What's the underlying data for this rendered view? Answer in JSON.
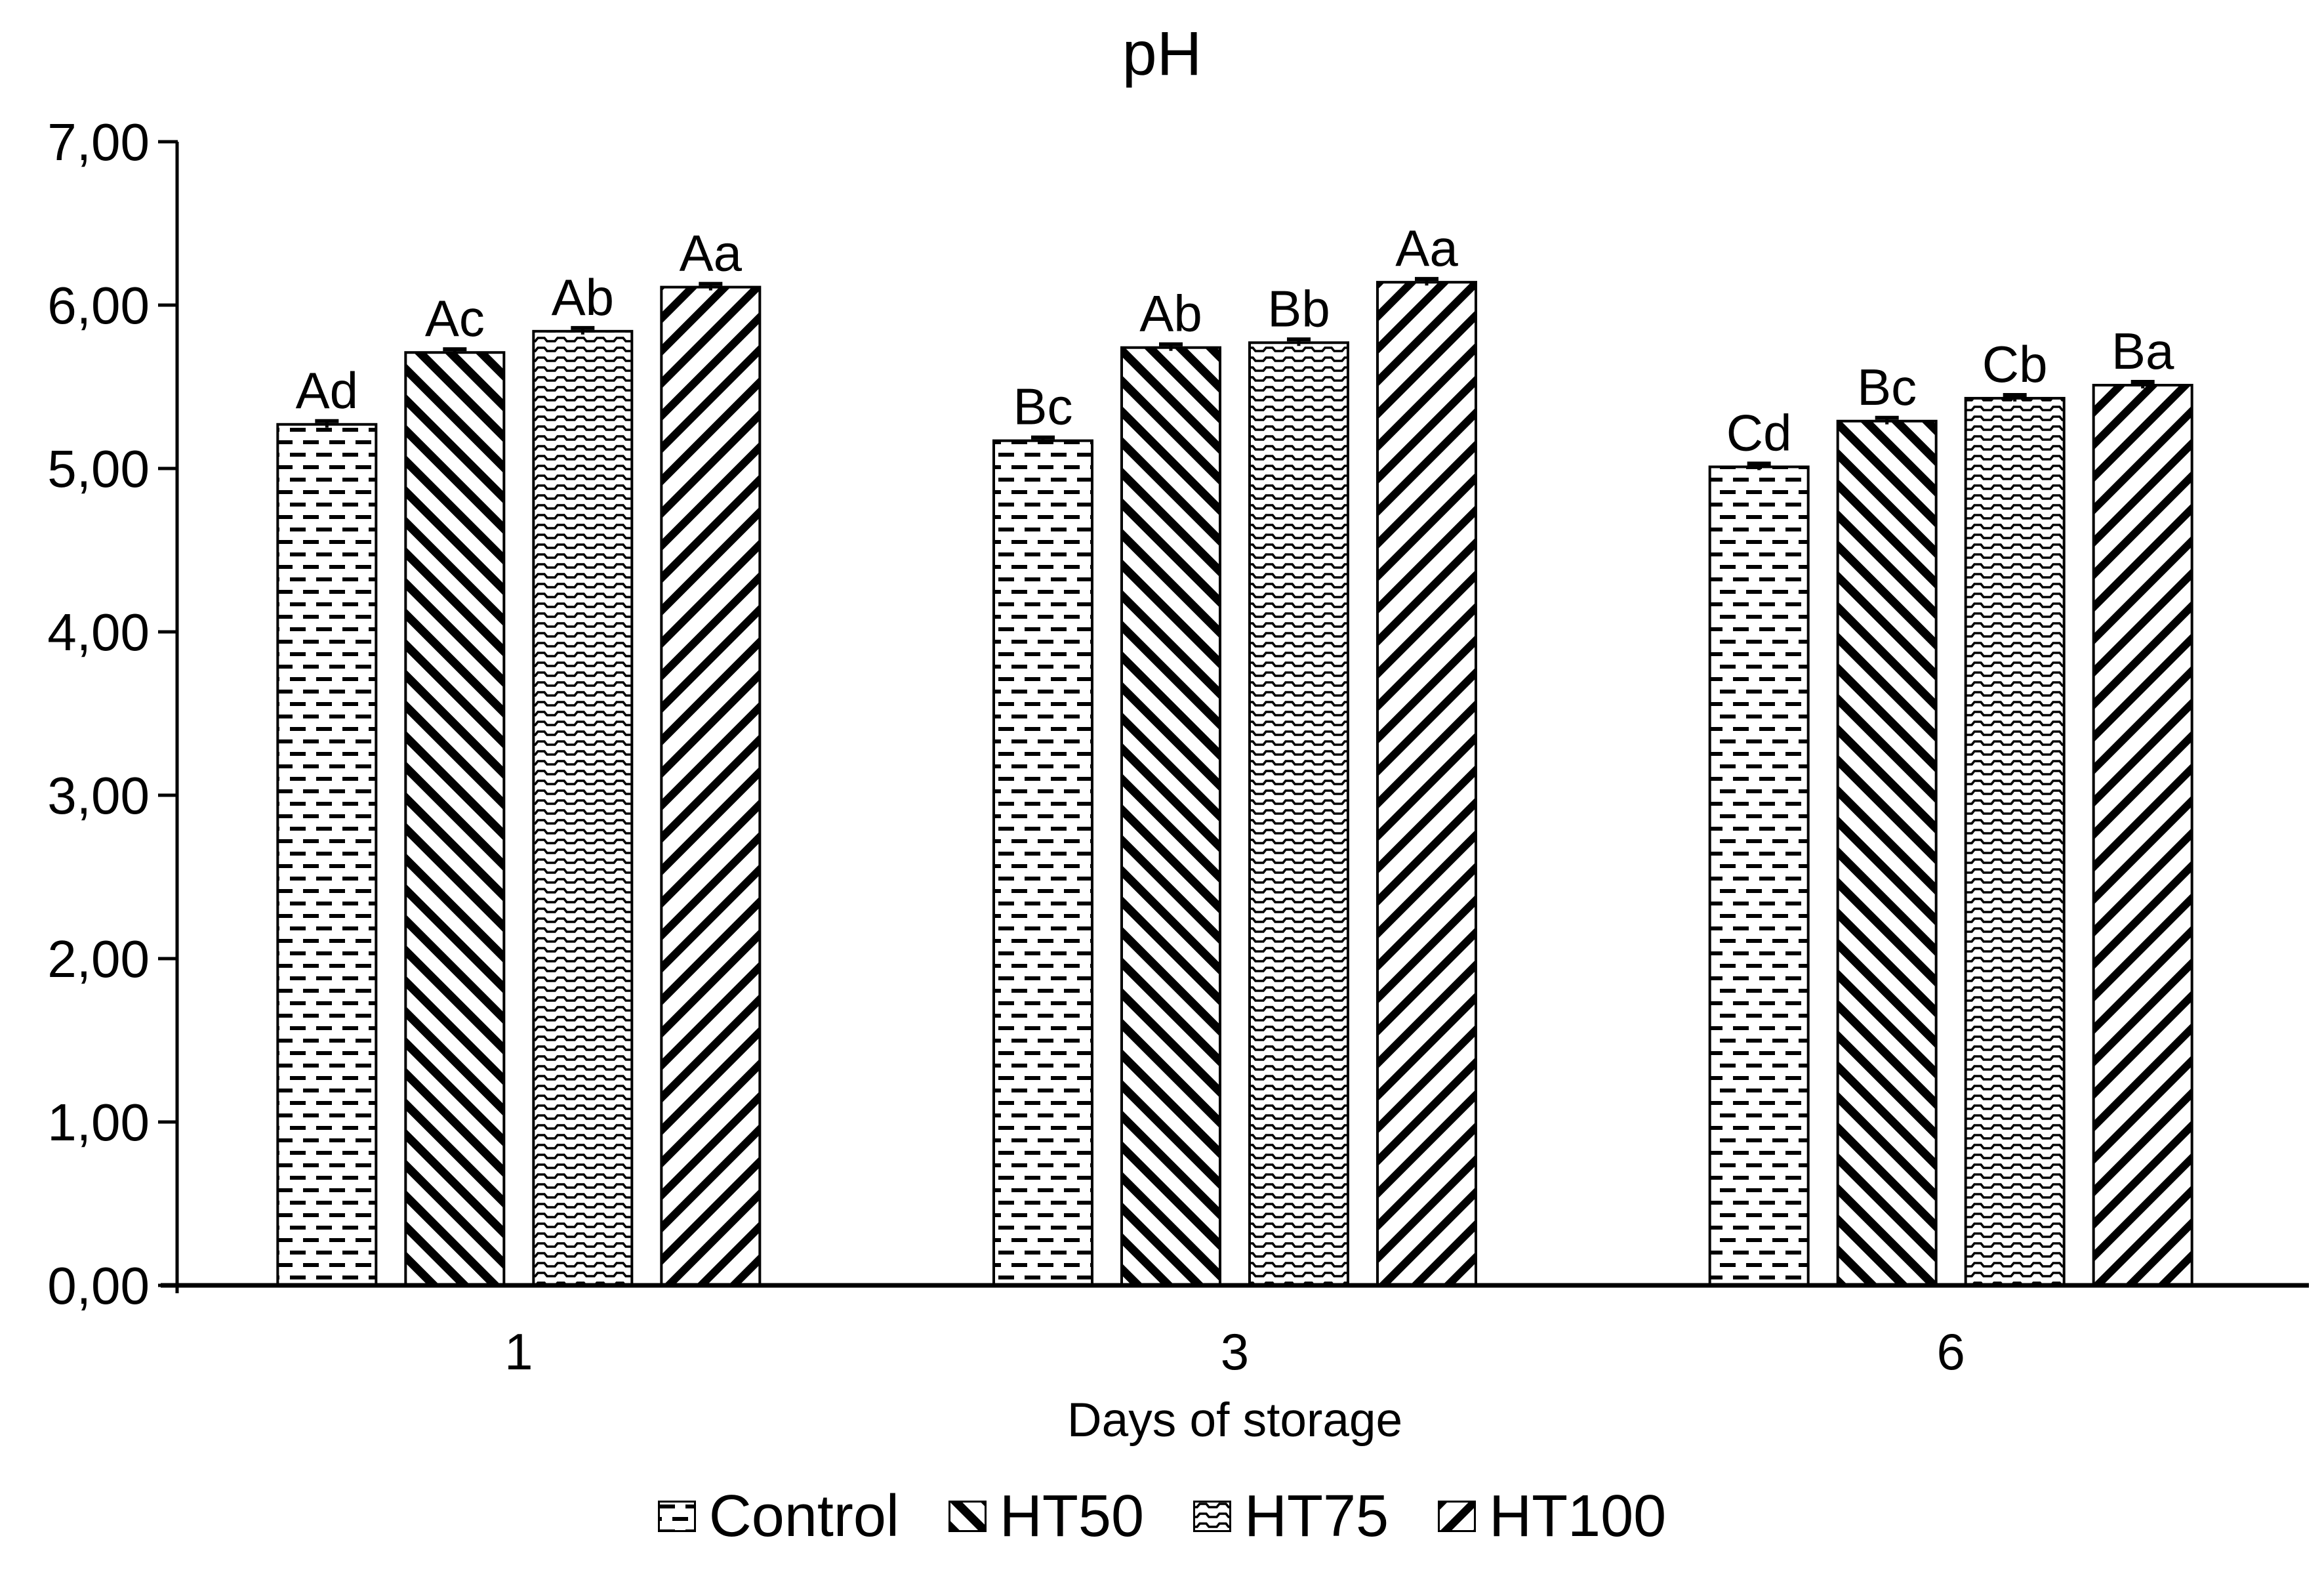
{
  "title": "pH",
  "chart_data": {
    "type": "bar",
    "title": "pH",
    "xlabel": "Days of storage",
    "ylabel": "",
    "categories": [
      "1",
      "3",
      "6"
    ],
    "yticks": [
      "0,00",
      "1,00",
      "2,00",
      "3,00",
      "4,00",
      "5,00",
      "6,00",
      "7,00"
    ],
    "ylim": [
      0,
      7
    ],
    "grid": false,
    "legend_position": "bottom",
    "background_color": "#ffffff",
    "foreground_color": "#000000",
    "series": [
      {
        "name": "Control",
        "pattern": "horizontal-dashes",
        "values": [
          5.27,
          5.17,
          5.01
        ],
        "errors": [
          0.02,
          0.02,
          0.02
        ],
        "labels": [
          "Ad",
          "Bc",
          "Cd"
        ]
      },
      {
        "name": "HT50",
        "pattern": "diagonal-down",
        "values": [
          5.71,
          5.74,
          5.29
        ],
        "errors": [
          0.02,
          0.02,
          0.02
        ],
        "labels": [
          "Ac",
          "Ab",
          "Bc"
        ]
      },
      {
        "name": "HT75",
        "pattern": "waves",
        "values": [
          5.84,
          5.77,
          5.43
        ],
        "errors": [
          0.02,
          0.02,
          0.02
        ],
        "labels": [
          "Ab",
          "Bb",
          "Cb"
        ]
      },
      {
        "name": "HT100",
        "pattern": "diagonal-up",
        "values": [
          6.11,
          6.14,
          5.51
        ],
        "errors": [
          0.02,
          0.02,
          0.02
        ],
        "labels": [
          "Aa",
          "Aa",
          "Ba"
        ]
      }
    ]
  }
}
